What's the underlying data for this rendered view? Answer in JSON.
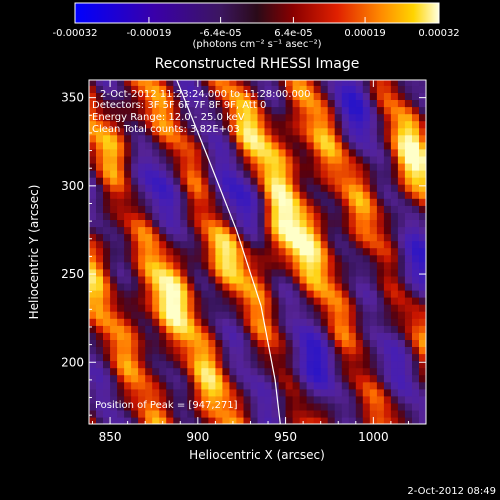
{
  "chart_data": {
    "type": "heatmap",
    "title": "Reconstructed RHESSI Image",
    "xlabel": "Heliocentric X (arcsec)",
    "ylabel": "Heliocentric Y (arcsec)",
    "xlim": [
      838,
      1030
    ],
    "ylim": [
      165,
      360
    ],
    "x_ticks": [
      850,
      900,
      950,
      1000
    ],
    "y_ticks": [
      200,
      250,
      300,
      350
    ],
    "colorbar": {
      "label": "(photons cm⁻² s⁻¹ asec⁻²)",
      "range": [
        -0.00032,
        0.00032
      ],
      "ticks": [
        {
          "value": -0.00032,
          "label": "-0.00032"
        },
        {
          "value": -0.00019,
          "label": "-0.00019"
        },
        {
          "value": -6.4e-05,
          "label": "-6.4e-05"
        },
        {
          "value": 6.4e-05,
          "label": "6.4e-05"
        },
        {
          "value": 0.00019,
          "label": "0.00019"
        },
        {
          "value": 0.00032,
          "label": "0.00032"
        }
      ]
    },
    "annotations": [
      "2-Oct-2012 11:23:24.000 to 11:28:00.000",
      "Detectors: 3F 5F 6F 7F 8F 9F, Att 0",
      "Energy Range: 12.0 - 25.0 keV",
      "Clean    Total counts: 3.82E+03"
    ],
    "peak_label": "Position of Peak = [947,271]",
    "peak": {
      "x": 947,
      "y": 271
    },
    "limb_curve": [
      [
        888,
        360
      ],
      [
        905,
        318
      ],
      [
        922,
        275
      ],
      [
        936,
        232
      ],
      [
        944,
        190
      ],
      [
        947,
        165
      ]
    ],
    "intensity_field": {
      "stripe_slope": 2.1,
      "stripe_period_arcsec": 44,
      "bright_spots": [
        [
          878,
          230,
          1.0
        ],
        [
          910,
          262,
          0.85
        ],
        [
          947,
          271,
          1.0
        ],
        [
          960,
          320,
          0.8
        ],
        [
          1020,
          315,
          0.85
        ],
        [
          1005,
          225,
          0.55
        ],
        [
          985,
          185,
          0.5
        ],
        [
          860,
          330,
          0.7
        ],
        [
          900,
          180,
          0.6
        ],
        [
          975,
          270,
          0.6
        ],
        [
          845,
          260,
          0.55
        ],
        [
          935,
          330,
          0.6
        ]
      ],
      "dark_regions": [
        [
          920,
          290,
          0.9
        ],
        [
          962,
          195,
          0.95
        ],
        [
          1020,
          250,
          0.9
        ],
        [
          870,
          300,
          0.7
        ],
        [
          990,
          345,
          0.7
        ],
        [
          1000,
          200,
          0.8
        ]
      ]
    }
  },
  "footer": {
    "timestamp": "2-Oct-2012 08:49"
  }
}
